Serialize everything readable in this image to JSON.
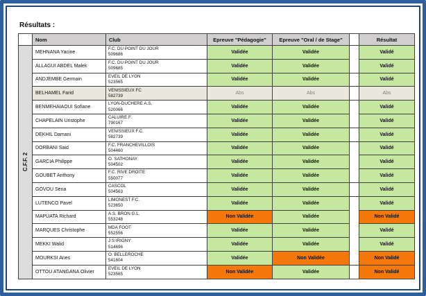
{
  "page_title": "Résultats :",
  "table": {
    "group_label": "C.F.F. 2",
    "headers": {
      "nom": "Nom",
      "club": "Club",
      "pedagogie": "Epreuve \"Pédagogie\"",
      "oral": "Epreuve \"Oral / de Stage\"",
      "resultat": "Résultat"
    },
    "rows": [
      {
        "nom": "MEHNANA Yacine",
        "club": "F.C. DU POINT DU JOUR",
        "club_id": "509686",
        "pedagogie": "Validée",
        "oral": "Validée",
        "resultat": "Validé"
      },
      {
        "nom": "ALLAGUI ABDEL Malek",
        "club": "F.C. DU POINT DU JOUR",
        "club_id": "509685",
        "pedagogie": "Validée",
        "oral": "Validée",
        "resultat": "Validé"
      },
      {
        "nom": "ANDJEMBE Germain",
        "club": "EVEIL DE LYON",
        "club_id": "523565",
        "pedagogie": "Validée",
        "oral": "Validée",
        "resultat": "Validé"
      },
      {
        "nom": "BELHAMEL Farid",
        "club": "VENISSIEUX FC",
        "club_id": "582739",
        "pedagogie": "Abs",
        "oral": "Abs",
        "resultat": "Abs"
      },
      {
        "nom": "BENMEHAIAOUI Sofiane",
        "club": "LYON-DUCHERE A.S.",
        "club_id": "520066",
        "pedagogie": "Validée",
        "oral": "Validée",
        "resultat": "Validé"
      },
      {
        "nom": "CHAPELAIN Uristophe",
        "club": "CALUIRE F.",
        "club_id": "790167",
        "pedagogie": "Validée",
        "oral": "Validée",
        "resultat": "Validé"
      },
      {
        "nom": "DEKHIL Damani",
        "club": "VENISSIEUX F.C.",
        "club_id": "582739",
        "pedagogie": "Validée",
        "oral": "Validée",
        "resultat": "Validé"
      },
      {
        "nom": "DORBANI Said",
        "club": "F.C. FRANCHEVILLOIS",
        "club_id": "504460",
        "pedagogie": "Validée",
        "oral": "Validée",
        "resultat": "Validé"
      },
      {
        "nom": "GARCIA Philippe",
        "club": "O. SATHONAY",
        "club_id": "504502",
        "pedagogie": "Validée",
        "oral": "Validée",
        "resultat": "Validé"
      },
      {
        "nom": "GOUBET Anthony",
        "club": "F.C. RIVE DROITE",
        "club_id": "550077",
        "pedagogie": "Validée",
        "oral": "Validée",
        "resultat": "Validé"
      },
      {
        "nom": "GOVOU Sena",
        "club": "CASCOL",
        "club_id": "504563",
        "pedagogie": "Validée",
        "oral": "Validée",
        "resultat": "Validé"
      },
      {
        "nom": "LUTENCO Pavel",
        "club": "LIMONEST F.C.",
        "club_id": "523650",
        "pedagogie": "Validée",
        "oral": "Validée",
        "resultat": "Validé"
      },
      {
        "nom": "MAPUATA Richard",
        "club": "A.S. BRON G.L.",
        "club_id": "553248",
        "pedagogie": "Non Validée",
        "oral": "Validée",
        "resultat": "Non Validé"
      },
      {
        "nom": "MARQUES Christophe",
        "club": "MDA FOOT",
        "club_id": "552556",
        "pedagogie": "Validée",
        "oral": "Validée",
        "resultat": "Validé"
      },
      {
        "nom": "MEKKI Walid",
        "club": "J S IRIGNY",
        "club_id": "514696",
        "pedagogie": "Validée",
        "oral": "Validée",
        "resultat": "Validé"
      },
      {
        "nom": "MOURKSI Anes",
        "club": "O. BELLEROCHE",
        "club_id": "541604",
        "pedagogie": "Validée",
        "oral": "Non Validée",
        "resultat": "Non Validé"
      },
      {
        "nom": "OTTOU ATANGANA Olivier",
        "club": "EVEIL DE LYON",
        "club_id": "523565",
        "pedagogie": "Non Validée",
        "oral": "Validée",
        "resultat": "Non Validé"
      }
    ]
  },
  "colors": {
    "valid_green": "#c6e7a0",
    "invalid_orange": "#f4790a",
    "abs_beige": "#eae7dc",
    "header_grey": "#d0cece",
    "group_grey": "#dcdcdc",
    "line": "#404040",
    "frame_blue": "#2d5e9d",
    "frame_blue_dark": "#1f4671"
  }
}
